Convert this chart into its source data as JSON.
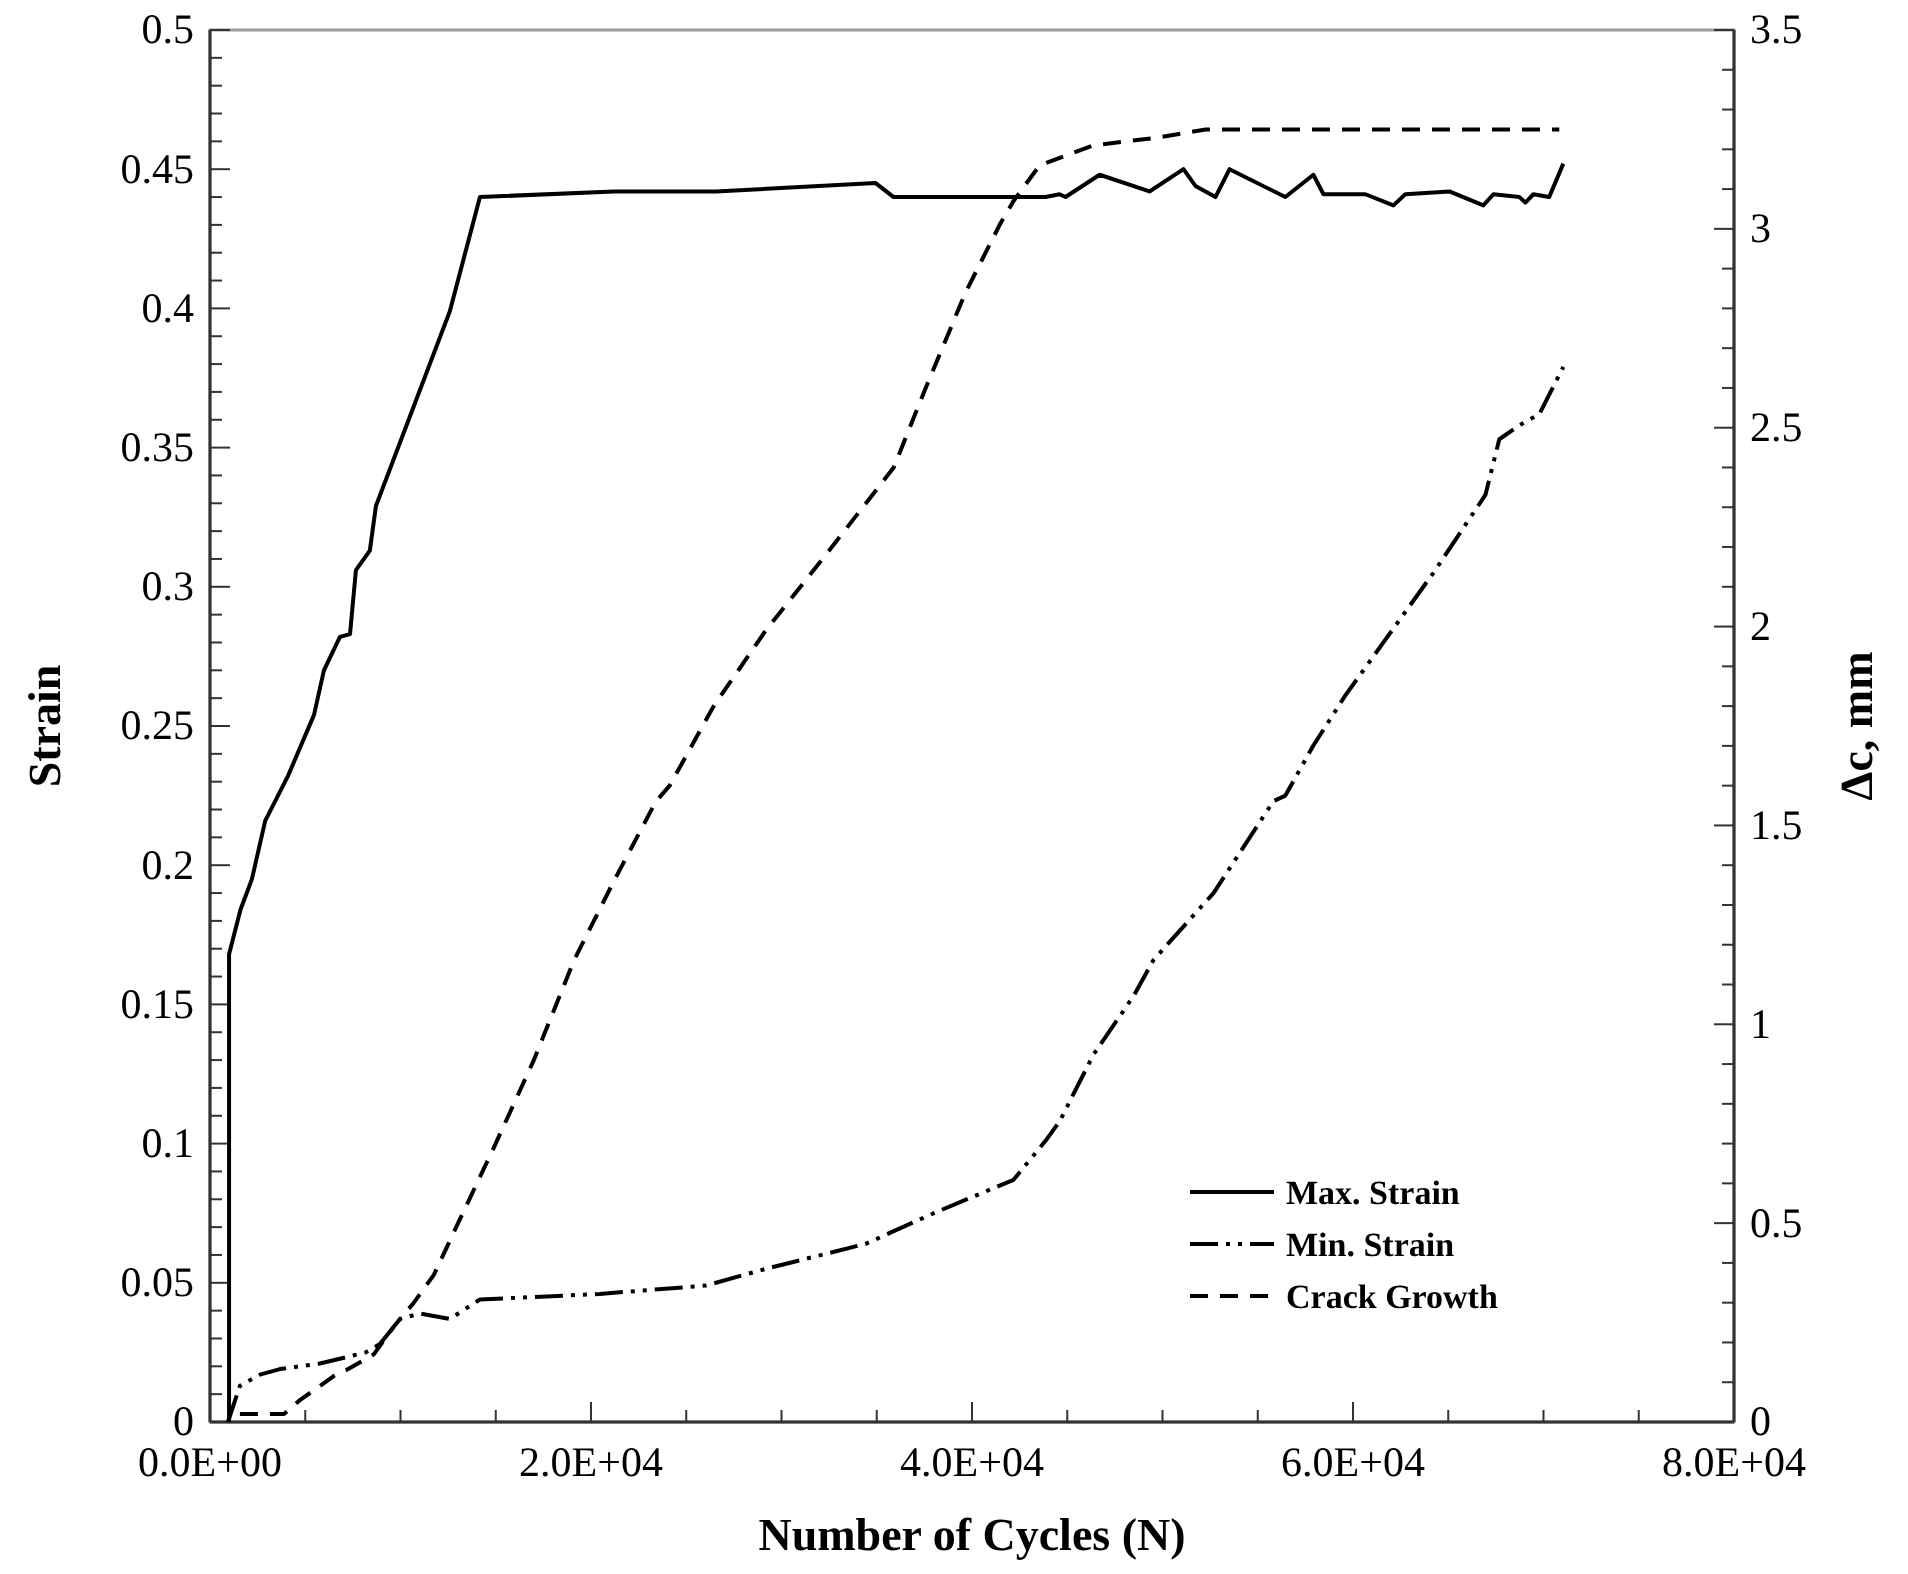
{
  "chart_data": {
    "type": "line",
    "xlabel": "Number of Cycles (N)",
    "ylabel": "Strain",
    "y2label": "Δc, mm",
    "legend": "bottom right",
    "grid": false,
    "marker": "none",
    "xlim": [
      0,
      80000
    ],
    "ylim": [
      0,
      0.5
    ],
    "y2lim": [
      0,
      3.5
    ],
    "xticks": [
      {
        "value": 0,
        "label": "0.0E+00"
      },
      {
        "value": 5000,
        "label": null
      },
      {
        "value": 10000,
        "label": null
      },
      {
        "value": 15000,
        "label": null
      },
      {
        "value": 20000,
        "label": "2.0E+04"
      },
      {
        "value": 25000,
        "label": null
      },
      {
        "value": 30000,
        "label": null
      },
      {
        "value": 35000,
        "label": null
      },
      {
        "value": 40000,
        "label": "4.0E+04"
      },
      {
        "value": 45000,
        "label": null
      },
      {
        "value": 50000,
        "label": null
      },
      {
        "value": 55000,
        "label": null
      },
      {
        "value": 60000,
        "label": "6.0E+04"
      },
      {
        "value": 65000,
        "label": null
      },
      {
        "value": 70000,
        "label": null
      },
      {
        "value": 75000,
        "label": null
      },
      {
        "value": 80000,
        "label": "8.0E+04"
      }
    ],
    "yticks": [
      0,
      {
        "value": 0.01,
        "label": null
      },
      {
        "value": 0.02,
        "label": null
      },
      {
        "value": 0.03,
        "label": null
      },
      {
        "value": 0.04,
        "label": null
      },
      0.05,
      {
        "value": 0.06,
        "label": null
      },
      {
        "value": 0.07,
        "label": null
      },
      {
        "value": 0.08,
        "label": null
      },
      {
        "value": 0.09,
        "label": null
      },
      0.1,
      {
        "value": 0.11,
        "label": null
      },
      {
        "value": 0.12,
        "label": null
      },
      {
        "value": 0.13,
        "label": null
      },
      {
        "value": 0.14,
        "label": null
      },
      0.15,
      {
        "value": 0.16,
        "label": null
      },
      {
        "value": 0.17,
        "label": null
      },
      {
        "value": 0.18,
        "label": null
      },
      {
        "value": 0.19,
        "label": null
      },
      0.2,
      {
        "value": 0.21,
        "label": null
      },
      {
        "value": 0.22,
        "label": null
      },
      {
        "value": 0.23,
        "label": null
      },
      {
        "value": 0.24,
        "label": null
      },
      0.25,
      {
        "value": 0.26,
        "label": null
      },
      {
        "value": 0.27,
        "label": null
      },
      {
        "value": 0.28,
        "label": null
      },
      {
        "value": 0.29,
        "label": null
      },
      0.3,
      {
        "value": 0.31,
        "label": null
      },
      {
        "value": 0.32,
        "label": null
      },
      {
        "value": 0.33,
        "label": null
      },
      {
        "value": 0.34,
        "label": null
      },
      0.35,
      {
        "value": 0.36,
        "label": null
      },
      {
        "value": 0.37,
        "label": null
      },
      {
        "value": 0.38,
        "label": null
      },
      {
        "value": 0.39,
        "label": null
      },
      0.4,
      {
        "value": 0.41,
        "label": null
      },
      {
        "value": 0.42,
        "label": null
      },
      {
        "value": 0.43,
        "label": null
      },
      {
        "value": 0.44,
        "label": null
      },
      0.45,
      {
        "value": 0.46,
        "label": null
      },
      {
        "value": 0.47,
        "label": null
      },
      {
        "value": 0.48,
        "label": null
      },
      {
        "value": 0.49,
        "label": null
      },
      0.5
    ],
    "y2ticks": [
      0,
      {
        "value": 0.1,
        "label": null
      },
      {
        "value": 0.2,
        "label": null
      },
      {
        "value": 0.3,
        "label": null
      },
      {
        "value": 0.4,
        "label": null
      },
      0.5,
      {
        "value": 0.6,
        "label": null
      },
      {
        "value": 0.7,
        "label": null
      },
      {
        "value": 0.8,
        "label": null
      },
      {
        "value": 0.9,
        "label": null
      },
      1,
      {
        "value": 1.1,
        "label": null
      },
      {
        "value": 1.2,
        "label": null
      },
      {
        "value": 1.3,
        "label": null
      },
      {
        "value": 1.4,
        "label": null
      },
      1.5,
      {
        "value": 1.6,
        "label": null
      },
      {
        "value": 1.7,
        "label": null
      },
      {
        "value": 1.8,
        "label": null
      },
      {
        "value": 1.9,
        "label": null
      },
      2,
      {
        "value": 2.1,
        "label": null
      },
      {
        "value": 2.2,
        "label": null
      },
      {
        "value": 2.3,
        "label": null
      },
      {
        "value": 2.4,
        "label": null
      },
      2.5,
      {
        "value": 2.6,
        "label": null
      },
      {
        "value": 2.7,
        "label": null
      },
      {
        "value": 2.8,
        "label": null
      },
      {
        "value": 2.9,
        "label": null
      },
      3,
      {
        "value": 3.1,
        "label": null
      },
      {
        "value": 3.2,
        "label": null
      },
      {
        "value": 3.3,
        "label": null
      },
      {
        "value": 3.4,
        "label": null
      },
      3.5
    ],
    "series": [
      {
        "name": "Max. Strain",
        "color": "#000000",
        "line_style": "solid",
        "x": [
          1000,
          1000,
          1600,
          2200,
          2900,
          4090,
          5460,
          5980,
          6820,
          7350,
          7660,
          8390,
          8710,
          12590,
          14170,
          21200,
          26550,
          34940,
          35890,
          41450,
          43860,
          44600,
          44910,
          46700,
          49320,
          51100,
          51730,
          52780,
          53520,
          56450,
          57920,
          58450,
          60650,
          62120,
          62750,
          65060,
          66840,
          67370,
          68730,
          69050,
          69470,
          70300,
          71040
        ],
        "values": [
          0,
          0.168,
          0.184,
          0.195,
          0.216,
          0.232,
          0.254,
          0.27,
          0.282,
          0.283,
          0.306,
          0.313,
          0.329,
          0.399,
          0.44,
          0.442,
          0.442,
          0.445,
          0.44,
          0.44,
          0.44,
          0.441,
          0.44,
          0.448,
          0.442,
          0.45,
          0.444,
          0.44,
          0.45,
          0.44,
          0.448,
          0.441,
          0.441,
          0.437,
          0.441,
          0.442,
          0.437,
          0.441,
          0.44,
          0.438,
          0.441,
          0.44,
          0.452
        ]
      },
      {
        "name": "Min. Strain",
        "color": "#000000",
        "line_style": "dashdotdot",
        "x": [
          940,
          1570,
          2620,
          3670,
          5770,
          8180,
          8920,
          9970,
          11020,
          12590,
          14170,
          20460,
          26020,
          29170,
          34420,
          37990,
          42180,
          43860,
          44600,
          46380,
          48480,
          49530,
          52680,
          55820,
          56450,
          57920,
          59600,
          61700,
          64220,
          66950,
          67680,
          68730,
          69780,
          71040
        ],
        "values": [
          0,
          0.013,
          0.017,
          0.019,
          0.021,
          0.025,
          0.028,
          0.037,
          0.039,
          0.037,
          0.044,
          0.046,
          0.049,
          0.055,
          0.064,
          0.075,
          0.087,
          0.101,
          0.108,
          0.132,
          0.153,
          0.166,
          0.19,
          0.223,
          0.225,
          0.243,
          0.261,
          0.281,
          0.305,
          0.333,
          0.353,
          0.358,
          0.362,
          0.379
        ]
      },
      {
        "name": "Crack Growth",
        "color": "#000000",
        "line_style": "dashed",
        "axis": "y2",
        "x": [
          1570,
          2830,
          3880,
          4720,
          5460,
          6510,
          7140,
          8600,
          9650,
          10700,
          11750,
          13120,
          14900,
          17000,
          19100,
          21200,
          23400,
          24130,
          26440,
          29170,
          32320,
          35890,
          37570,
          39660,
          41450,
          42180,
          43550,
          46380,
          49840,
          52260,
          70830
        ],
        "values": [
          0.02,
          0.02,
          0.02,
          0.055,
          0.08,
          0.116,
          0.13,
          0.17,
          0.24,
          0.3,
          0.37,
          0.51,
          0.69,
          0.91,
          1.16,
          1.36,
          1.56,
          1.6,
          1.8,
          1.99,
          2.18,
          2.4,
          2.6,
          2.84,
          3.01,
          3.07,
          3.16,
          3.21,
          3.23,
          3.25,
          3.25
        ]
      }
    ]
  }
}
